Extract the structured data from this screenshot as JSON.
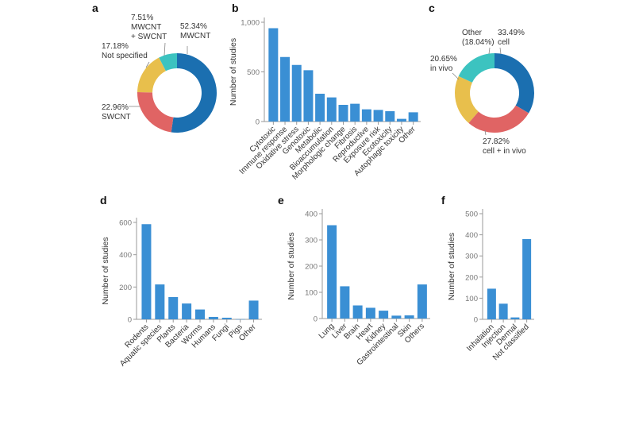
{
  "colors": {
    "bar": "#3a8fd4",
    "blue": "#1b6fb0",
    "red": "#e06464",
    "yellow": "#e8bf4c",
    "teal": "#3cc3c0"
  },
  "chart_data": [
    {
      "panel": "a",
      "type": "pie",
      "donut": true,
      "slices": [
        {
          "value": 52.34,
          "lines": [
            "52.34%",
            "MWCNT"
          ],
          "color": "#1b6fb0"
        },
        {
          "value": 22.96,
          "lines": [
            "22.96%",
            "SWCNT"
          ],
          "color": "#e06464"
        },
        {
          "value": 17.18,
          "lines": [
            "17.18%",
            "Not specified"
          ],
          "color": "#e8bf4c"
        },
        {
          "value": 7.51,
          "lines": [
            "7.51%",
            "MWCNT",
            "+ SWCNT"
          ],
          "color": "#3cc3c0"
        }
      ]
    },
    {
      "panel": "b",
      "type": "bar",
      "ylabel": "Number of studies",
      "ylim": [
        0,
        1000
      ],
      "yticks": [
        0,
        500,
        1000
      ],
      "ytick_labels": [
        "0",
        "500",
        "1,000"
      ],
      "categories": [
        "Cytotoxic",
        "Immune response",
        "Oxidative stress",
        "Genotoxic",
        "Metabolic",
        "Bioaccumulation",
        "Morphologic change",
        "Fibrosis",
        "Reproductive",
        "Exposure risk",
        "Ecotoxicity",
        "Autophagic toxicity",
        "Other"
      ],
      "values": [
        940,
        650,
        570,
        517,
        280,
        243,
        168,
        179,
        123,
        117,
        104,
        27,
        93
      ]
    },
    {
      "panel": "c",
      "type": "pie",
      "donut": true,
      "slices": [
        {
          "value": 33.49,
          "lines": [
            "33.49%",
            "cell"
          ],
          "color": "#1b6fb0"
        },
        {
          "value": 27.82,
          "lines": [
            "27.82%",
            "cell + in vivo"
          ],
          "color": "#e06464"
        },
        {
          "value": 20.65,
          "lines": [
            "20.65%",
            "in vivo"
          ],
          "color": "#e8bf4c"
        },
        {
          "value": 18.04,
          "lines": [
            "Other",
            "(18.04%)"
          ],
          "color": "#3cc3c0"
        }
      ]
    },
    {
      "panel": "d",
      "type": "bar",
      "ylabel": "Number of studies",
      "ylim": [
        0,
        600
      ],
      "yticks": [
        0,
        200,
        400,
        600
      ],
      "ytick_labels": [
        "0",
        "200",
        "400",
        "600"
      ],
      "categories": [
        "Rodents",
        "Aquatic species",
        "Plants",
        "Bacteria",
        "Worms",
        "Humans",
        "Fungi",
        "Pigs",
        "Other"
      ],
      "values": [
        589,
        216,
        138,
        98,
        61,
        15,
        10,
        1,
        116
      ]
    },
    {
      "panel": "e",
      "type": "bar",
      "ylabel": "Number of studies",
      "ylim": [
        0,
        400
      ],
      "yticks": [
        0,
        100,
        200,
        300,
        400
      ],
      "ytick_labels": [
        "0",
        "100",
        "200",
        "300",
        "400"
      ],
      "categories": [
        "Lung",
        "Liver",
        "Brain",
        "Heart",
        "Kidney",
        "Gastrointestinal",
        "Skin",
        "Others"
      ],
      "values": [
        356,
        123,
        50,
        41,
        30,
        11,
        12,
        130
      ]
    },
    {
      "panel": "f",
      "type": "bar",
      "ylabel": "Number of studies",
      "ylim": [
        0,
        500
      ],
      "yticks": [
        0,
        100,
        200,
        300,
        400,
        500
      ],
      "ytick_labels": [
        "0",
        "100",
        "200",
        "300",
        "400",
        "500"
      ],
      "categories": [
        "Inhalation",
        "Injection",
        "Dermal",
        "Not classified"
      ],
      "values": [
        145,
        74,
        9,
        380
      ]
    }
  ]
}
